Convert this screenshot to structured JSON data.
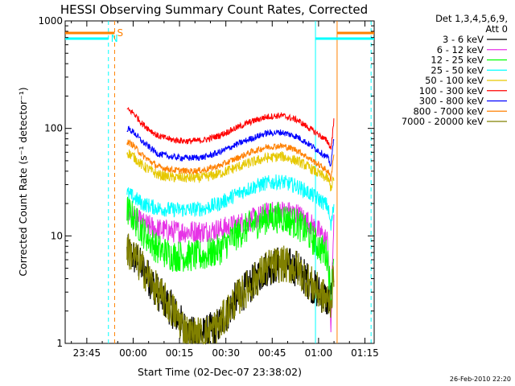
{
  "chart_data": {
    "type": "line",
    "title": "HESSI Observing Summary Count Rates, Corrected",
    "xlabel": "Start Time (02-Dec-07 23:38:02)",
    "ylabel": "Corrected Count Rate (s⁻¹ detector⁻¹)",
    "y_scale": "log",
    "ylim": [
      1,
      1000
    ],
    "xlim_minutes_after_start": [
      0,
      100
    ],
    "x_tick_minutes": [
      7,
      22,
      37,
      52,
      67,
      82,
      97
    ],
    "x_tick_labels": [
      "23:45",
      "00:00",
      "00:15",
      "00:30",
      "00:45",
      "01:00",
      "01:15"
    ],
    "y_tick_values": [
      1,
      10,
      100,
      1000
    ],
    "y_tick_labels": [
      "1",
      "10",
      "100",
      "1000"
    ],
    "legend_header": [
      "Det 1,3,4,5,6,9,",
      "Att 0"
    ],
    "series": [
      {
        "name": "3 - 6 keV",
        "color": "#000000",
        "x": [
          20,
          22,
          25,
          30,
          35,
          40,
          45,
          50,
          55,
          60,
          65,
          70,
          75,
          78,
          82,
          85,
          86,
          87
        ],
        "y": [
          7,
          6.5,
          5,
          3,
          2,
          1.2,
          1.2,
          1.5,
          2.5,
          3.5,
          5,
          5.5,
          5,
          4,
          3,
          2.5,
          2.5,
          5
        ]
      },
      {
        "name": "6 - 12 keV",
        "color": "#e633e6",
        "x": [
          20,
          22,
          25,
          30,
          35,
          40,
          45,
          50,
          55,
          60,
          65,
          70,
          75,
          78,
          82,
          85,
          86,
          87
        ],
        "y": [
          16.5,
          15,
          13,
          11.5,
          11,
          11,
          11,
          11.5,
          12.5,
          14,
          16,
          17,
          16,
          14,
          11,
          9,
          1.4,
          18
        ]
      },
      {
        "name": "12 - 25 keV",
        "color": "#00ff00",
        "x": [
          20,
          22,
          25,
          30,
          35,
          40,
          45,
          50,
          55,
          60,
          65,
          70,
          75,
          78,
          82,
          85,
          86,
          87
        ],
        "y": [
          17.5,
          15,
          11,
          7.5,
          6.5,
          6.5,
          6.5,
          7.5,
          10,
          12.5,
          14.5,
          15,
          13,
          11,
          8,
          6.5,
          2.5,
          8
        ]
      },
      {
        "name": "25 - 50 keV",
        "color": "#00ffff",
        "x": [
          20,
          22,
          25,
          30,
          35,
          40,
          45,
          50,
          55,
          60,
          65,
          70,
          75,
          78,
          82,
          85,
          86,
          87
        ],
        "y": [
          25,
          23,
          20,
          18,
          17.5,
          17.5,
          18,
          20,
          24,
          28,
          31,
          32,
          29,
          26,
          22,
          19,
          12,
          20
        ]
      },
      {
        "name": "50 - 100 keV",
        "color": "#e6c800",
        "x": [
          20,
          22,
          25,
          30,
          35,
          40,
          45,
          50,
          55,
          60,
          65,
          70,
          75,
          78,
          82,
          85,
          86,
          87
        ],
        "y": [
          60,
          55,
          45,
          37,
          35,
          34.5,
          35,
          38,
          43,
          48,
          53,
          55,
          50,
          45,
          38,
          34,
          28,
          35
        ]
      },
      {
        "name": "100 - 300 keV",
        "color": "#ff0000",
        "x": [
          20,
          22,
          25,
          30,
          35,
          40,
          45,
          50,
          55,
          60,
          65,
          70,
          75,
          78,
          82,
          85,
          86,
          87
        ],
        "y": [
          150,
          140,
          110,
          85,
          78,
          76,
          78,
          86,
          100,
          115,
          128,
          132,
          120,
          105,
          88,
          75,
          65,
          120
        ]
      },
      {
        "name": "300 - 800 keV",
        "color": "#0000ff",
        "x": [
          20,
          22,
          25,
          30,
          35,
          40,
          45,
          50,
          55,
          60,
          65,
          70,
          75,
          78,
          82,
          85,
          86,
          87
        ],
        "y": [
          100,
          93,
          75,
          58,
          54,
          53,
          54,
          60,
          70,
          80,
          90,
          92,
          84,
          74,
          62,
          53,
          45,
          85
        ]
      },
      {
        "name": "800 - 7000 keV",
        "color": "#ff8000",
        "x": [
          20,
          22,
          25,
          30,
          35,
          40,
          45,
          50,
          55,
          60,
          65,
          70,
          75,
          78,
          82,
          85,
          86,
          87
        ],
        "y": [
          75,
          70,
          56,
          44,
          41,
          40,
          41,
          45,
          52,
          60,
          67,
          69,
          63,
          55,
          46,
          40,
          34,
          60
        ]
      },
      {
        "name": "7000 - 20000 keV",
        "color": "#808000",
        "x": [
          20,
          22,
          25,
          30,
          35,
          40,
          45,
          50,
          55,
          60,
          65,
          70,
          75,
          78,
          82,
          85,
          86,
          87
        ],
        "y": [
          7.5,
          6.5,
          5,
          3,
          2,
          1.2,
          1.2,
          1.5,
          2.5,
          3.5,
          5,
          5.5,
          5,
          4,
          3,
          2.5,
          2.5,
          4.5
        ]
      }
    ],
    "markers": {
      "cyan_dashed_vertical_minutes": [
        14,
        99
      ],
      "orange_dashed_vertical_minutes": [
        16
      ],
      "cyan_solid_vertical_minutes": [
        81
      ],
      "orange_solid_vertical_minutes": [
        88
      ],
      "saa_label": "S",
      "night_label": "N"
    }
  },
  "footer_stamp": "26-Feb-2010 22:20"
}
